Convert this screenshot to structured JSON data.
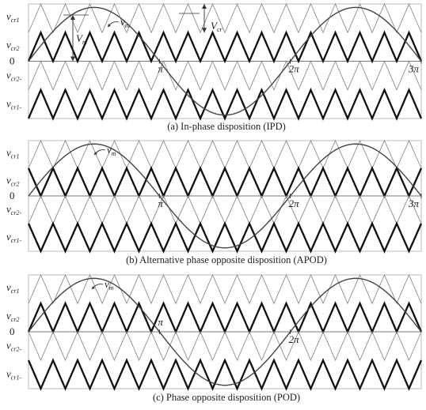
{
  "panels": [
    {
      "id": "ipd",
      "caption": "(a)  In-phase disposition (IPD)",
      "band_phases": [
        0,
        0,
        0,
        0
      ],
      "sine_ticks": [
        "π",
        "2π",
        "3π"
      ],
      "annotations": [
        "v_m",
        "V_m",
        "V_cr"
      ]
    },
    {
      "id": "apod",
      "caption": "(b) Alternative phase opposite disposition (APOD)",
      "band_phases": [
        0,
        1,
        0,
        1
      ],
      "sine_ticks": [
        "π",
        "2π",
        "3π"
      ],
      "annotations": [
        "v_m"
      ]
    },
    {
      "id": "pod",
      "caption": "(c) Phase opposite disposition (POD)",
      "band_phases": [
        0,
        0,
        1,
        1
      ],
      "sine_ticks": [
        "π",
        "2π"
      ],
      "annotations": [
        "v_m"
      ]
    }
  ],
  "y_labels": [
    {
      "sym": "v",
      "sub": "cr1"
    },
    {
      "sym": "v",
      "sub": "cr2"
    },
    {
      "sym": "0",
      "sub": ""
    },
    {
      "sym": "v",
      "sub": "cr2-"
    },
    {
      "sym": "v",
      "sub": "cr1-"
    }
  ],
  "carrier_periods": 16,
  "modulating_periods": 1.5
}
